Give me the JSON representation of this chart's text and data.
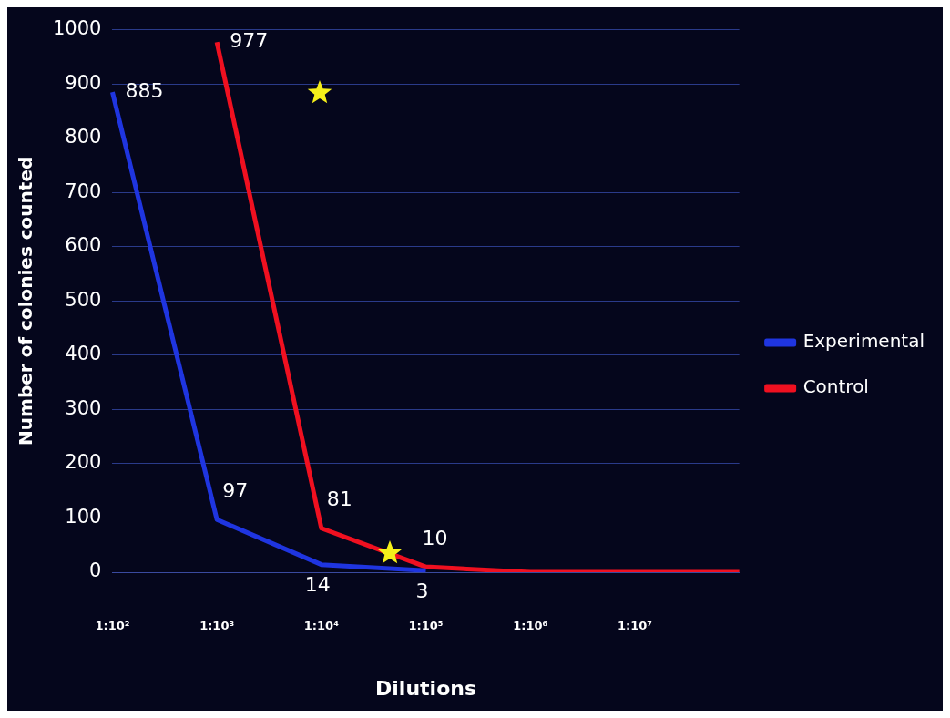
{
  "chart_data": {
    "type": "line",
    "xlabel": "Dilutions",
    "ylabel": "Number of colonies counted",
    "categories": [
      "1:10²",
      "1:10³",
      "1:10⁴",
      "1:10⁵",
      "1:10⁶",
      "1:10⁷",
      null
    ],
    "series": [
      {
        "name": "Experimental",
        "color": "#1f35e0",
        "values": [
          885,
          97,
          14,
          3,
          null,
          null,
          null
        ],
        "value_labels": [
          "885",
          "97",
          "14",
          "3",
          null,
          null,
          null
        ]
      },
      {
        "name": "Control",
        "color": "#f01020",
        "values": [
          null,
          977,
          81,
          10,
          0,
          0,
          0
        ],
        "value_labels": [
          null,
          "977",
          "81",
          "10",
          null,
          null,
          null
        ]
      }
    ],
    "ylim": [
      0,
      1000
    ],
    "yticks": [
      0,
      100,
      200,
      300,
      400,
      500,
      600,
      700,
      800,
      900,
      1000
    ],
    "grid": "y",
    "legend": "right",
    "marker": "none",
    "line_style": "solid"
  }
}
